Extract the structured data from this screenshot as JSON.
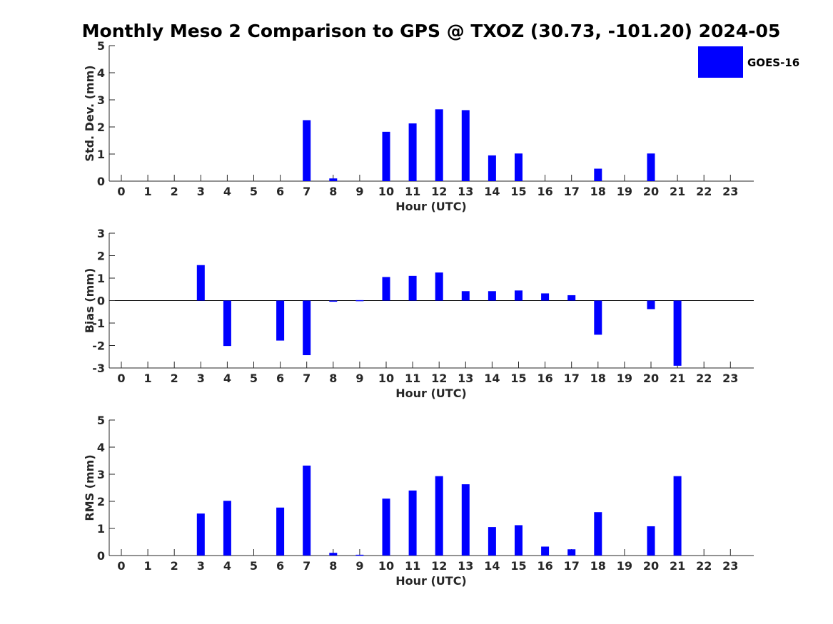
{
  "title": "Monthly Meso 2 Comparison to GPS @ TXOZ (30.73, -101.20) 2024-05",
  "legend": {
    "label": "GOES-16",
    "color": "#0000ff"
  },
  "chart_data": [
    {
      "type": "bar",
      "categories": [
        "0",
        "1",
        "2",
        "3",
        "4",
        "5",
        "6",
        "7",
        "8",
        "9",
        "10",
        "11",
        "12",
        "13",
        "14",
        "15",
        "16",
        "17",
        "18",
        "19",
        "20",
        "21",
        "22",
        "23"
      ],
      "series": [
        {
          "name": "GOES-16",
          "values": [
            null,
            null,
            null,
            null,
            null,
            null,
            null,
            2.25,
            0.1,
            null,
            1.82,
            2.13,
            2.65,
            2.62,
            0.95,
            1.02,
            null,
            null,
            0.46,
            null,
            1.02,
            null,
            null,
            null
          ]
        }
      ],
      "xlabel": "Hour (UTC)",
      "ylabel": "Std. Dev. (mm)",
      "ylim": [
        0,
        5
      ],
      "yticks": [
        "0",
        "1",
        "2",
        "3",
        "4",
        "5"
      ],
      "grid": false,
      "legend_position": "top-right"
    },
    {
      "type": "bar",
      "categories": [
        "0",
        "1",
        "2",
        "3",
        "4",
        "5",
        "6",
        "7",
        "8",
        "9",
        "10",
        "11",
        "12",
        "13",
        "14",
        "15",
        "16",
        "17",
        "18",
        "19",
        "20",
        "21",
        "22",
        "23"
      ],
      "series": [
        {
          "name": "GOES-16",
          "values": [
            null,
            null,
            null,
            1.58,
            -2.02,
            null,
            -1.78,
            -2.43,
            -0.05,
            0.02,
            1.05,
            1.1,
            1.25,
            0.42,
            0.42,
            0.45,
            0.32,
            0.24,
            -1.52,
            null,
            -0.38,
            -2.9,
            null,
            null
          ]
        }
      ],
      "xlabel": "Hour (UTC)",
      "ylabel": "Bias (mm)",
      "ylim": [
        -3,
        3
      ],
      "yticks": [
        "-3",
        "-2",
        "-1",
        "0",
        "1",
        "2",
        "3"
      ],
      "grid": false
    },
    {
      "type": "bar",
      "categories": [
        "0",
        "1",
        "2",
        "3",
        "4",
        "5",
        "6",
        "7",
        "8",
        "9",
        "10",
        "11",
        "12",
        "13",
        "14",
        "15",
        "16",
        "17",
        "18",
        "19",
        "20",
        "21",
        "22",
        "23"
      ],
      "series": [
        {
          "name": "GOES-16",
          "values": [
            null,
            null,
            null,
            1.55,
            2.02,
            null,
            1.77,
            3.32,
            0.1,
            0.03,
            2.1,
            2.4,
            2.93,
            2.63,
            1.05,
            1.12,
            0.33,
            0.23,
            1.6,
            null,
            1.08,
            2.93,
            null,
            null
          ]
        }
      ],
      "xlabel": "Hour (UTC)",
      "ylabel": "RMS (mm)",
      "ylim": [
        0,
        5
      ],
      "yticks": [
        "0",
        "1",
        "2",
        "3",
        "4",
        "5"
      ],
      "grid": false
    }
  ]
}
